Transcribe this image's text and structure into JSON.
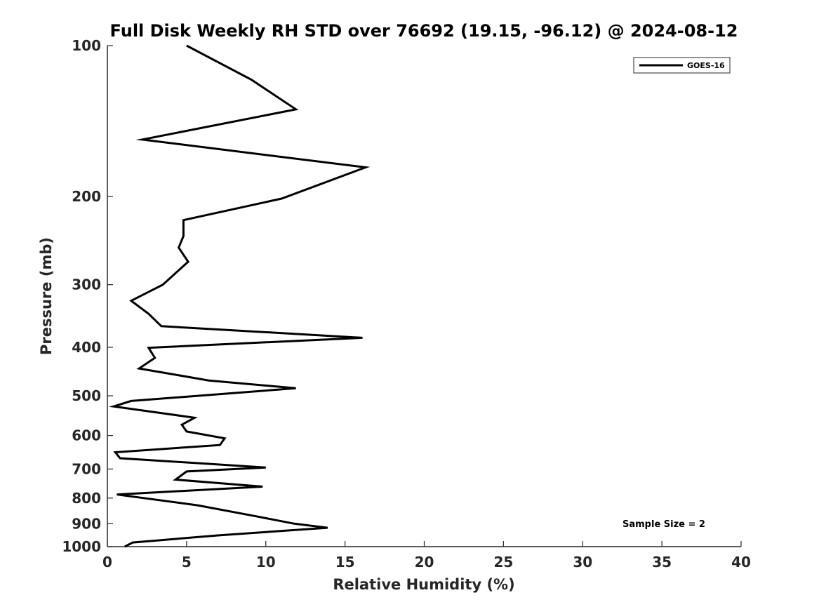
{
  "chart_data": {
    "type": "line",
    "title": "Full Disk Weekly RH STD over 76692 (19.15, -96.12) @ 2024-08-12",
    "xlabel": "Relative Humidity (%)",
    "ylabel": "Pressure (mb)",
    "xlim": [
      0,
      40
    ],
    "ylim": [
      100,
      1000
    ],
    "y_scale": "log",
    "y_reversed": true,
    "x_ticks": [
      "0",
      "5",
      "10",
      "15",
      "20",
      "25",
      "30",
      "35",
      "40"
    ],
    "y_ticks": [
      "100",
      "200",
      "300",
      "400",
      "500",
      "600",
      "700",
      "800",
      "900",
      "1000"
    ],
    "grid": false,
    "legend": {
      "placement": "top-right",
      "entries": [
        "GOES-16"
      ]
    },
    "series": [
      {
        "name": "GOES-16",
        "color": "#000000",
        "x": [
          5.0,
          9.1,
          11.9,
          2.2,
          16.3,
          11.0,
          4.8,
          4.8,
          4.5,
          5.1,
          3.5,
          1.5,
          2.6,
          3.4,
          16.1,
          2.6,
          3.0,
          2.0,
          6.4,
          11.9,
          1.5,
          0.4,
          5.5,
          4.7,
          5.0,
          7.4,
          7.1,
          0.5,
          0.8,
          10.0,
          5.0,
          4.3,
          9.8,
          0.6,
          5.7,
          9.4,
          11.8,
          13.9,
          10.0,
          6.9,
          1.6,
          1.1
        ],
        "y": [
          100,
          117,
          134,
          154,
          175,
          202,
          223,
          240,
          253,
          270,
          300,
          323,
          343,
          363,
          383,
          401,
          420,
          441,
          466,
          483,
          512,
          525,
          553,
          571,
          589,
          608,
          627,
          648,
          666,
          695,
          708,
          735,
          759,
          787,
          827,
          870,
          900,
          917,
          935,
          950,
          981,
          1000
        ]
      }
    ],
    "annotations": [
      "Sample Size = 2"
    ]
  }
}
